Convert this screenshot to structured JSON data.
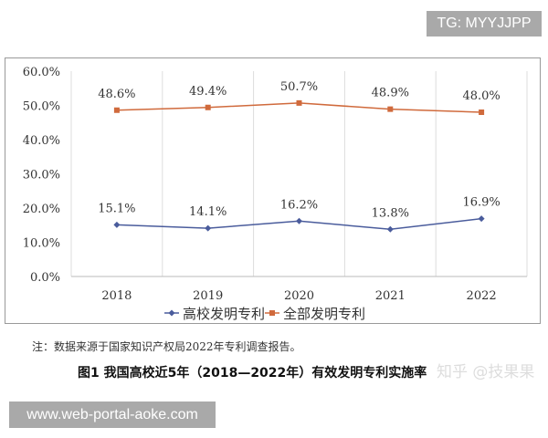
{
  "overlay_tag": "TG: MYYJJPP",
  "watermark_url": "www.web-portal-aoke.com",
  "zhihu_watermark": "知乎 @技果果",
  "note": "注：数据来源于国家知识产权局2022年专利调查报告。",
  "caption": "图1 我国高校近5年（2018—2022年）有效发明专利实施率",
  "chart_data": {
    "type": "line",
    "title": "",
    "categories": [
      "2018",
      "2019",
      "2020",
      "2021",
      "2022"
    ],
    "ylim": [
      0,
      60
    ],
    "yticks": [
      "0.0%",
      "10.0%",
      "20.0%",
      "30.0%",
      "40.0%",
      "50.0%",
      "60.0%"
    ],
    "grid": "vertical",
    "legend": "bottom",
    "series": [
      {
        "name": "高校发明专利",
        "color": "#4a5c9c",
        "marker": "diamond",
        "values": [
          15.1,
          14.1,
          16.2,
          13.8,
          16.9
        ],
        "labels": [
          "15.1%",
          "14.1%",
          "16.2%",
          "13.8%",
          "16.9%"
        ]
      },
      {
        "name": "全部发明专利",
        "color": "#d06a3c",
        "marker": "square",
        "values": [
          48.6,
          49.4,
          50.7,
          48.9,
          48.0
        ],
        "labels": [
          "48.6%",
          "49.4%",
          "50.7%",
          "48.9%",
          "48.0%"
        ]
      }
    ]
  }
}
